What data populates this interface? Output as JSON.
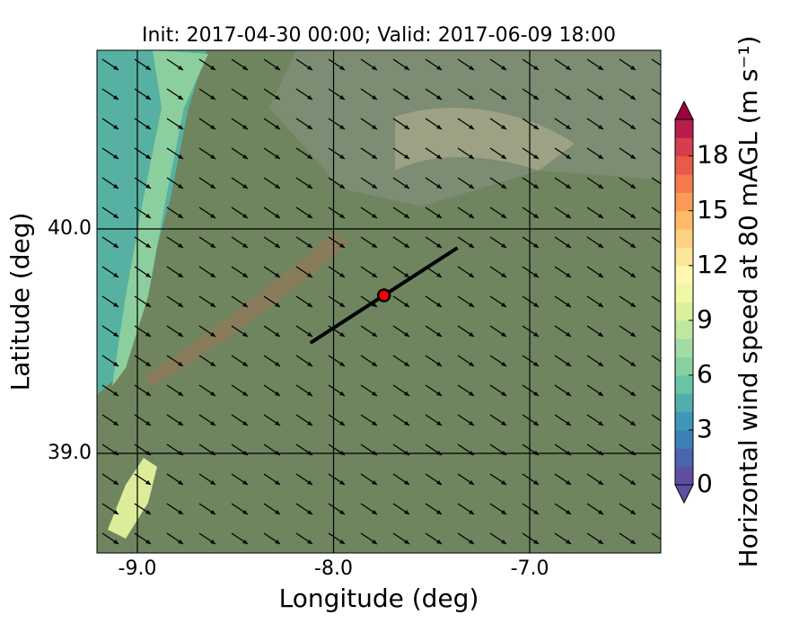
{
  "chart_data": {
    "type": "map",
    "title": "Init: 2017-04-30 00:00; Valid: 2017-06-09 18:00",
    "x_label": "Longitude (deg)",
    "y_label": "Latitude (deg)",
    "xlim": [
      -9.206,
      -6.332
    ],
    "ylim": [
      38.556,
      40.796
    ],
    "xticks": [
      {
        "value": -9,
        "label": "-9.0"
      },
      {
        "value": -8,
        "label": "-8.0"
      },
      {
        "value": -7,
        "label": "-7.0"
      }
    ],
    "yticks": [
      {
        "value": 39,
        "label": "39.0"
      },
      {
        "value": 40,
        "label": "40.0"
      }
    ],
    "grid": true,
    "section": {
      "x": [
        -8.118,
        -7.368
      ],
      "y": [
        39.492,
        39.916
      ],
      "color": "#000000"
    },
    "site": {
      "x": -7.743,
      "y": 39.704,
      "color": "#ff0000"
    },
    "colorbar": {
      "label": "Horizontal wind speed at 80 mAGL (m s⁻¹)",
      "lim": [
        0,
        20
      ],
      "ticks": [
        0,
        3,
        6,
        9,
        12,
        15,
        18
      ],
      "colors": [
        "#5e4fa2",
        "#4b65ae",
        "#3f7fb8",
        "#3e97b7",
        "#52aeae",
        "#6bc3a5",
        "#88cfa4",
        "#a4daa4",
        "#c0e6a0",
        "#daf09b",
        "#eef8a5",
        "#fdf7b2",
        "#fee699",
        "#fdd282",
        "#fdba6b",
        "#fa9b58",
        "#f57b4b",
        "#e85b48",
        "#d53e4f",
        "#b91e49"
      ],
      "under": "#5e4fa2",
      "over": "#9e0142"
    }
  }
}
